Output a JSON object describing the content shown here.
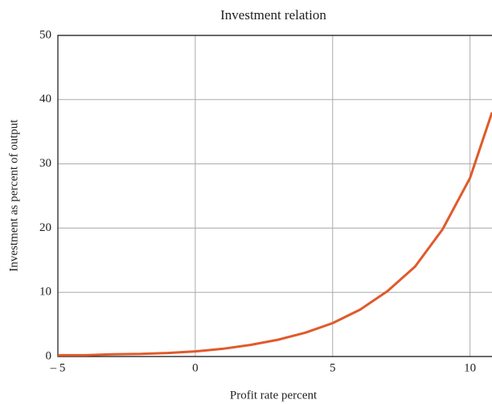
{
  "chart_data": {
    "type": "line",
    "title": "Investment relation",
    "x_label": "Profit rate percent",
    "y_label": "Investment as percent of output",
    "x": [
      -5,
      -4,
      -3,
      -2,
      -1,
      0,
      1,
      2,
      3,
      4,
      5,
      6,
      7,
      8,
      9,
      10,
      10.8
    ],
    "series": [
      {
        "name": "Investment",
        "color": "#e05a2b",
        "values": [
          0.2,
          0.2,
          0.35,
          0.4,
          0.55,
          0.8,
          1.2,
          1.8,
          2.6,
          3.7,
          5.2,
          7.3,
          10.2,
          14,
          19.8,
          27.8,
          38
        ]
      }
    ],
    "xlim": [
      -5,
      10.8
    ],
    "ylim": [
      0,
      50
    ],
    "xticks": [
      {
        "value": -5,
        "label": "– 5"
      },
      0,
      5,
      10
    ],
    "yticks": [
      0,
      10,
      20,
      30,
      40,
      50
    ],
    "grid": true
  }
}
